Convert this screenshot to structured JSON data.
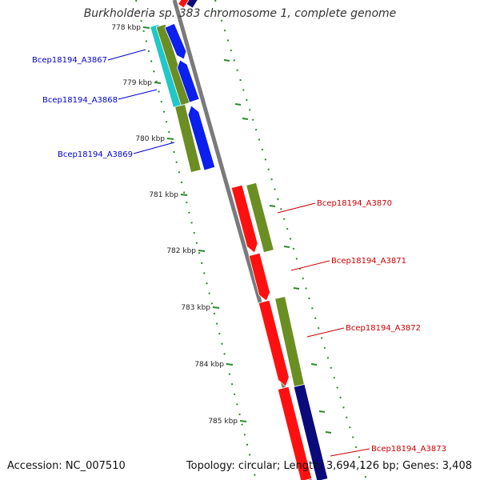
{
  "title": "Burkholderia sp. 383 chromosome 1, complete genome",
  "accession": "Accession: NC_007510",
  "summary": "Topology: circular; Length: 3,694,126 bp; Genes: 3,408",
  "colors": {
    "backbone": "#7a7a7a",
    "tick": "#2a8a2a",
    "forward_label": "#0000cc",
    "reverse_label": "#cc0000",
    "blue_gene": "#0b1fee",
    "navy_gene": "#0a0a7a",
    "red_gene": "#ff1010",
    "olive_gene": "#6b8e23",
    "cyan_gene": "#20c8c8"
  },
  "scale": {
    "ticks": [
      {
        "kbp": 778,
        "label": "778 kbp"
      },
      {
        "kbp": 779,
        "label": "779 kbp"
      },
      {
        "kbp": 780,
        "label": "780 kbp"
      },
      {
        "kbp": 781,
        "label": "781 kbp"
      },
      {
        "kbp": 782,
        "label": "782 kbp"
      },
      {
        "kbp": 783,
        "label": "783 kbp"
      },
      {
        "kbp": 784,
        "label": "784 kbp"
      },
      {
        "kbp": 785,
        "label": "785 kbp"
      }
    ]
  },
  "genes": [
    {
      "name": "Bcep18194_A3867",
      "strand": "forward"
    },
    {
      "name": "Bcep18194_A3868",
      "strand": "forward"
    },
    {
      "name": "Bcep18194_A3869",
      "strand": "forward"
    },
    {
      "name": "Bcep18194_A3870",
      "strand": "reverse"
    },
    {
      "name": "Bcep18194_A3871",
      "strand": "reverse"
    },
    {
      "name": "Bcep18194_A3872",
      "strand": "reverse"
    },
    {
      "name": "Bcep18194_A3873",
      "strand": "reverse"
    }
  ]
}
